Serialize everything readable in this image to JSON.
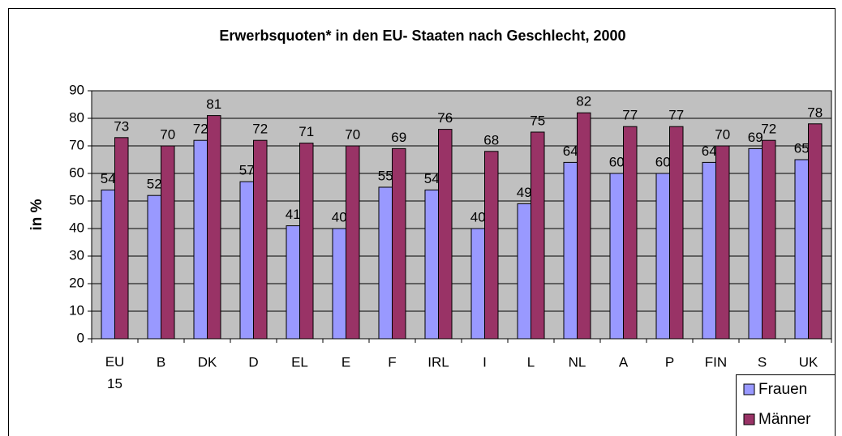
{
  "chart_data": {
    "type": "bar",
    "title": "Erwerbsquoten* in den EU- Staaten nach Geschlecht, 2000",
    "y_label": "in %",
    "categories": [
      "EU 15",
      "B",
      "DK",
      "D",
      "EL",
      "E",
      "F",
      "IRL",
      "I",
      "L",
      "NL",
      "A",
      "P",
      "FIN",
      "S",
      "UK"
    ],
    "series": [
      {
        "name": "Frauen",
        "color": "#9999ff",
        "values": [
          54,
          52,
          72,
          57,
          41,
          40,
          55,
          54,
          40,
          49,
          64,
          60,
          60,
          64,
          69,
          65
        ]
      },
      {
        "name": "Männer",
        "color": "#993366",
        "values": [
          73,
          70,
          81,
          72,
          71,
          70,
          69,
          76,
          68,
          75,
          82,
          77,
          77,
          70,
          72,
          78
        ]
      }
    ],
    "ylim": [
      0,
      90
    ],
    "yticks": [
      0,
      10,
      20,
      30,
      40,
      50,
      60,
      70,
      80,
      90
    ],
    "grid": true,
    "plot_background": "#c0c0c0",
    "legend": "bottom-right"
  }
}
